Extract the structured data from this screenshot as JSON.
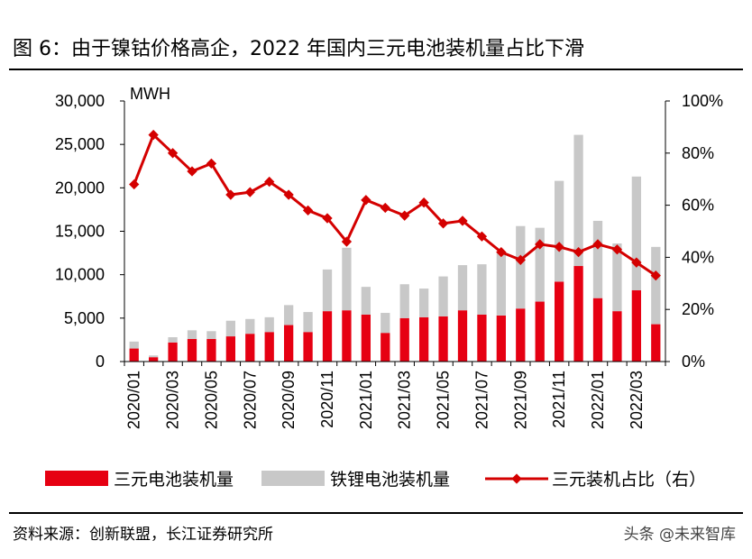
{
  "figure": {
    "title": "图 6：由于镍钴价格高企，2022 年国内三元电池装机量占比下滑",
    "source": "资料来源：创新联盟，长江证券研究所",
    "watermark": "头条 @未来智库"
  },
  "chart_data": {
    "type": "bar+line",
    "categories": [
      "2020/01",
      "2020/02",
      "2020/03",
      "2020/04",
      "2020/05",
      "2020/06",
      "2020/07",
      "2020/08",
      "2020/09",
      "2020/10",
      "2020/11",
      "2020/12",
      "2021/01",
      "2021/02",
      "2021/03",
      "2021/04",
      "2021/05",
      "2021/06",
      "2021/07",
      "2021/08",
      "2021/09",
      "2021/10",
      "2021/11",
      "2021/12",
      "2022/01",
      "2022/02",
      "2022/03",
      "2022/04"
    ],
    "x_tick_labels": [
      "2020/01",
      "2020/03",
      "2020/05",
      "2020/07",
      "2020/09",
      "2020/11",
      "2021/01",
      "2021/03",
      "2021/05",
      "2021/07",
      "2021/09",
      "2021/11",
      "2022/01",
      "2022/03"
    ],
    "left_axis": {
      "unit": "MWH",
      "min": 0,
      "max": 30000,
      "ticks": [
        "0",
        "5,000",
        "10,000",
        "15,000",
        "20,000",
        "25,000",
        "30,000"
      ]
    },
    "right_axis": {
      "min": 0,
      "max": 100,
      "ticks": [
        "0%",
        "20%",
        "40%",
        "60%",
        "80%",
        "100%"
      ]
    },
    "series": [
      {
        "name": "三元电池装机量",
        "kind": "bar",
        "axis": "left",
        "color": "#e60012",
        "values": [
          1500,
          500,
          2200,
          2600,
          2600,
          2900,
          3200,
          3400,
          4200,
          3400,
          5800,
          5900,
          5400,
          3300,
          5000,
          5100,
          5200,
          5900,
          5400,
          5300,
          6100,
          6900,
          9200,
          11000,
          7300,
          5800,
          8200,
          4300
        ]
      },
      {
        "name": "铁锂电池装机量",
        "kind": "bar",
        "axis": "left",
        "color": "#c8c8c8",
        "values": [
          800,
          200,
          600,
          1000,
          900,
          1800,
          1700,
          1700,
          2300,
          2300,
          4800,
          7200,
          3200,
          2300,
          3900,
          3300,
          4600,
          5200,
          5800,
          7200,
          9500,
          8500,
          11600,
          15100,
          8900,
          7800,
          13100,
          8900
        ]
      },
      {
        "name": "三元装机占比（右）",
        "kind": "line",
        "axis": "right",
        "color": "#d40000",
        "values": [
          68,
          87,
          80,
          73,
          76,
          64,
          65,
          69,
          64,
          58,
          55,
          46,
          62,
          59,
          56,
          61,
          53,
          54,
          48,
          42,
          39,
          45,
          44,
          42,
          45,
          43,
          38,
          33
        ]
      }
    ],
    "legend_position": "bottom",
    "grid": false
  }
}
